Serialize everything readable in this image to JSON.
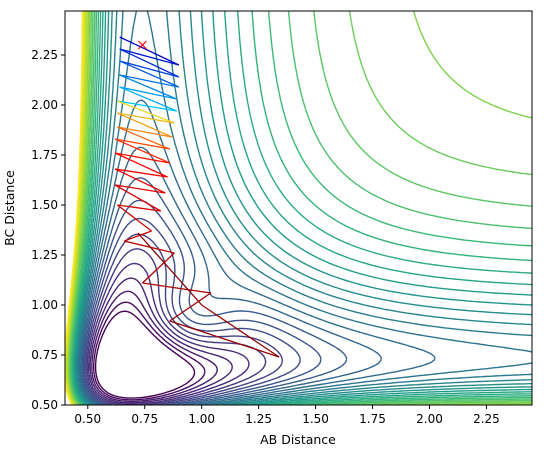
{
  "chart_data": {
    "type": "contour",
    "title": "",
    "xlabel": "AB Distance",
    "ylabel": "BC Distance",
    "xlim": [
      0.4,
      2.45
    ],
    "ylim": [
      0.5,
      2.47
    ],
    "x_ticks": [
      0.5,
      0.75,
      1.0,
      1.25,
      1.5,
      1.75,
      2.0,
      2.25
    ],
    "x_tick_labels": [
      "0.50",
      "0.75",
      "1.00",
      "1.25",
      "1.50",
      "1.75",
      "2.00",
      "2.25"
    ],
    "y_ticks": [
      0.5,
      0.75,
      1.0,
      1.25,
      1.5,
      1.75,
      2.0,
      2.25
    ],
    "y_tick_labels": [
      "0.50",
      "0.75",
      "1.00",
      "1.25",
      "1.50",
      "1.75",
      "2.00",
      "2.25"
    ],
    "grid": false,
    "colormap": "viridis",
    "surface": {
      "kind": "LEPS-like",
      "entrance_valley_x": 0.74,
      "exit_valley_y": 0.74,
      "barrier_center": [
        0.9,
        0.9
      ],
      "minimum_depth": -1.0
    },
    "trajectory": {
      "color_start": "#0000cc",
      "color_mid": "#ff0000",
      "color_end": "#8b0000",
      "start_marker": {
        "x": 0.74,
        "y": 2.3,
        "symbol": "x",
        "color": "#ff0000"
      },
      "points": [
        [
          0.64,
          2.34
        ],
        [
          0.9,
          2.2
        ],
        [
          0.64,
          2.28
        ],
        [
          0.9,
          2.14
        ],
        [
          0.64,
          2.22
        ],
        [
          0.9,
          2.09
        ],
        [
          0.64,
          2.15
        ],
        [
          0.89,
          2.03
        ],
        [
          0.64,
          2.09
        ],
        [
          0.89,
          1.97
        ],
        [
          0.63,
          2.02
        ],
        [
          0.88,
          1.91
        ],
        [
          0.63,
          1.96
        ],
        [
          0.87,
          1.84
        ],
        [
          0.63,
          1.89
        ],
        [
          0.86,
          1.78
        ],
        [
          0.62,
          1.83
        ],
        [
          0.86,
          1.71
        ],
        [
          0.62,
          1.76
        ],
        [
          0.85,
          1.64
        ],
        [
          0.62,
          1.68
        ],
        [
          0.84,
          1.56
        ],
        [
          0.62,
          1.6
        ],
        [
          0.82,
          1.47
        ],
        [
          0.63,
          1.5
        ],
        [
          0.78,
          1.37
        ],
        [
          0.66,
          1.32
        ],
        [
          0.88,
          1.26
        ],
        [
          0.74,
          1.11
        ],
        [
          1.04,
          1.06
        ],
        [
          0.86,
          0.92
        ],
        [
          1.34,
          0.74
        ],
        [
          1.0,
          1.0
        ],
        [
          0.72,
          1.36
        ]
      ]
    }
  }
}
